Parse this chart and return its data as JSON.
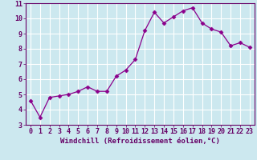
{
  "x": [
    0,
    1,
    2,
    3,
    4,
    5,
    6,
    7,
    8,
    9,
    10,
    11,
    12,
    13,
    14,
    15,
    16,
    17,
    18,
    19,
    20,
    21,
    22,
    23
  ],
  "y": [
    4.6,
    3.5,
    4.8,
    4.9,
    5.0,
    5.2,
    5.5,
    5.2,
    5.2,
    6.2,
    6.6,
    7.3,
    9.2,
    10.4,
    9.7,
    10.1,
    10.5,
    10.7,
    9.7,
    9.3,
    9.1,
    8.2,
    8.4,
    8.1
  ],
  "line_color": "#8b008b",
  "marker": "D",
  "marker_size": 2.5,
  "bg_color": "#cce8ef",
  "grid_color": "#b0d8e0",
  "xlabel": "Windchill (Refroidissement éolien,°C)",
  "xlim": [
    -0.5,
    23.5
  ],
  "ylim": [
    3,
    11
  ],
  "yticks": [
    3,
    4,
    5,
    6,
    7,
    8,
    9,
    10,
    11
  ],
  "xticks": [
    0,
    1,
    2,
    3,
    4,
    5,
    6,
    7,
    8,
    9,
    10,
    11,
    12,
    13,
    14,
    15,
    16,
    17,
    18,
    19,
    20,
    21,
    22,
    23
  ],
  "axis_color": "#660066",
  "label_fontsize": 6.5,
  "tick_fontsize": 6.0
}
